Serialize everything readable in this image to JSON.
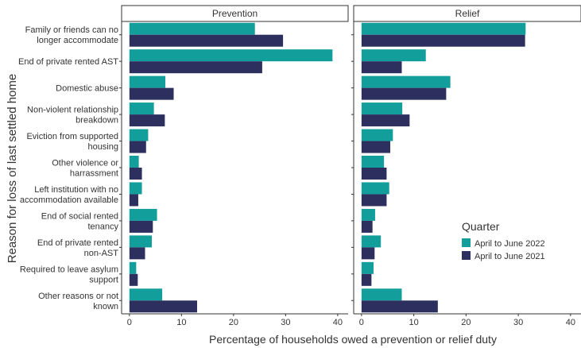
{
  "chart_data": {
    "type": "bar",
    "orientation": "horizontal",
    "facets": [
      "Prevention",
      "Relief"
    ],
    "categories": [
      [
        "Family or friends can no",
        "longer accommodate"
      ],
      [
        "End of private rented AST"
      ],
      [
        "Domestic abuse"
      ],
      [
        "Non-violent relationship",
        "breakdown"
      ],
      [
        "Eviction from supported",
        "housing"
      ],
      [
        "Other violence or",
        "harrassment"
      ],
      [
        "Left institution with no",
        "accommodation available"
      ],
      [
        "End of social rented",
        "tenancy"
      ],
      [
        "End of private rented",
        "non-AST"
      ],
      [
        "Required to leave asylum",
        "support"
      ],
      [
        "Other reasons or not",
        "known"
      ]
    ],
    "series": [
      {
        "name": "April to June 2022",
        "color": "#129e9a",
        "values": {
          "Prevention": [
            24.1,
            39.0,
            6.9,
            4.7,
            3.6,
            1.8,
            2.4,
            5.3,
            4.3,
            1.3,
            6.3
          ],
          "Relief": [
            31.4,
            12.3,
            17.0,
            7.8,
            6.0,
            4.3,
            5.3,
            2.6,
            3.7,
            2.3,
            7.7
          ]
        }
      },
      {
        "name": "April to June 2021",
        "color": "#2d2f5f",
        "values": {
          "Prevention": [
            29.5,
            25.5,
            8.5,
            6.8,
            3.2,
            2.4,
            1.7,
            4.5,
            3.0,
            1.6,
            13.0
          ],
          "Relief": [
            31.3,
            7.7,
            16.2,
            9.2,
            5.5,
            4.8,
            4.8,
            2.1,
            2.5,
            1.9,
            14.6
          ]
        }
      }
    ],
    "x_ticks": [
      0,
      10,
      20,
      30,
      40
    ],
    "xlim": [
      -1.5,
      42
    ],
    "xlabel": "Percentage of households owed a prevention or relief duty",
    "ylabel": "Reason for loss of last settled home",
    "legend": {
      "title": "Quarter",
      "position": "right",
      "items": [
        "April to June 2022",
        "April to June 2021"
      ]
    },
    "grid": false
  }
}
